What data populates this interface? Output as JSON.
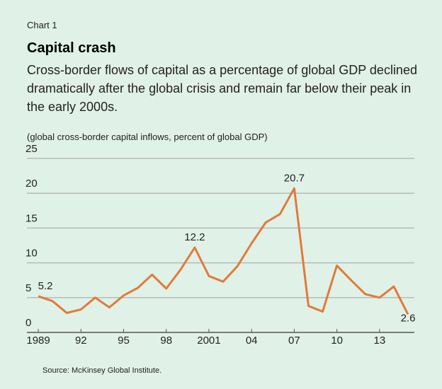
{
  "chart_data": {
    "type": "line",
    "kicker": "Chart 1",
    "title": "Capital crash",
    "subtitle": "Cross-border flows of capital as a percentage of global GDP declined dramatically after the global crisis and remain far below their peak in the early 2000s.",
    "y_axis_label": "(global cross-border capital inflows, percent of global GDP)",
    "source": "Source: McKinsey Global Institute.",
    "x": [
      1989,
      1990,
      1991,
      1992,
      1993,
      1994,
      1995,
      1996,
      1997,
      1998,
      1999,
      2000,
      2001,
      2002,
      2003,
      2004,
      2005,
      2006,
      2007,
      2008,
      2009,
      2010,
      2011,
      2012,
      2013,
      2014,
      2015
    ],
    "series": [
      {
        "name": "Cross-border capital inflows",
        "color": "#e07b39",
        "values": [
          5.2,
          4.5,
          2.8,
          3.3,
          5.0,
          3.6,
          5.3,
          6.4,
          8.3,
          6.3,
          9.0,
          12.2,
          8.1,
          7.3,
          9.5,
          12.8,
          15.8,
          17.0,
          20.7,
          3.8,
          3.0,
          9.6,
          7.5,
          5.5,
          5.0,
          6.6,
          2.6
        ],
        "value_labels": [
          "5.2",
          null,
          null,
          null,
          null,
          null,
          null,
          null,
          null,
          null,
          null,
          "12.2",
          null,
          null,
          null,
          null,
          null,
          null,
          "20.7",
          null,
          null,
          null,
          null,
          null,
          null,
          null,
          "2.6"
        ]
      }
    ],
    "xlim": [
      1988.2,
      2015.1
    ],
    "xticks": [
      {
        "value": 1989,
        "label": "1989"
      },
      {
        "value": 1992,
        "label": "92"
      },
      {
        "value": 1995,
        "label": "95"
      },
      {
        "value": 1998,
        "label": "98"
      },
      {
        "value": 2001,
        "label": "2001"
      },
      {
        "value": 2004,
        "label": "04"
      },
      {
        "value": 2007,
        "label": "07"
      },
      {
        "value": 2010,
        "label": "10"
      },
      {
        "value": 2013,
        "label": "13"
      }
    ],
    "ylim": [
      0,
      25
    ],
    "yticks": [
      0,
      5,
      10,
      15,
      20,
      25
    ],
    "grid": true
  }
}
